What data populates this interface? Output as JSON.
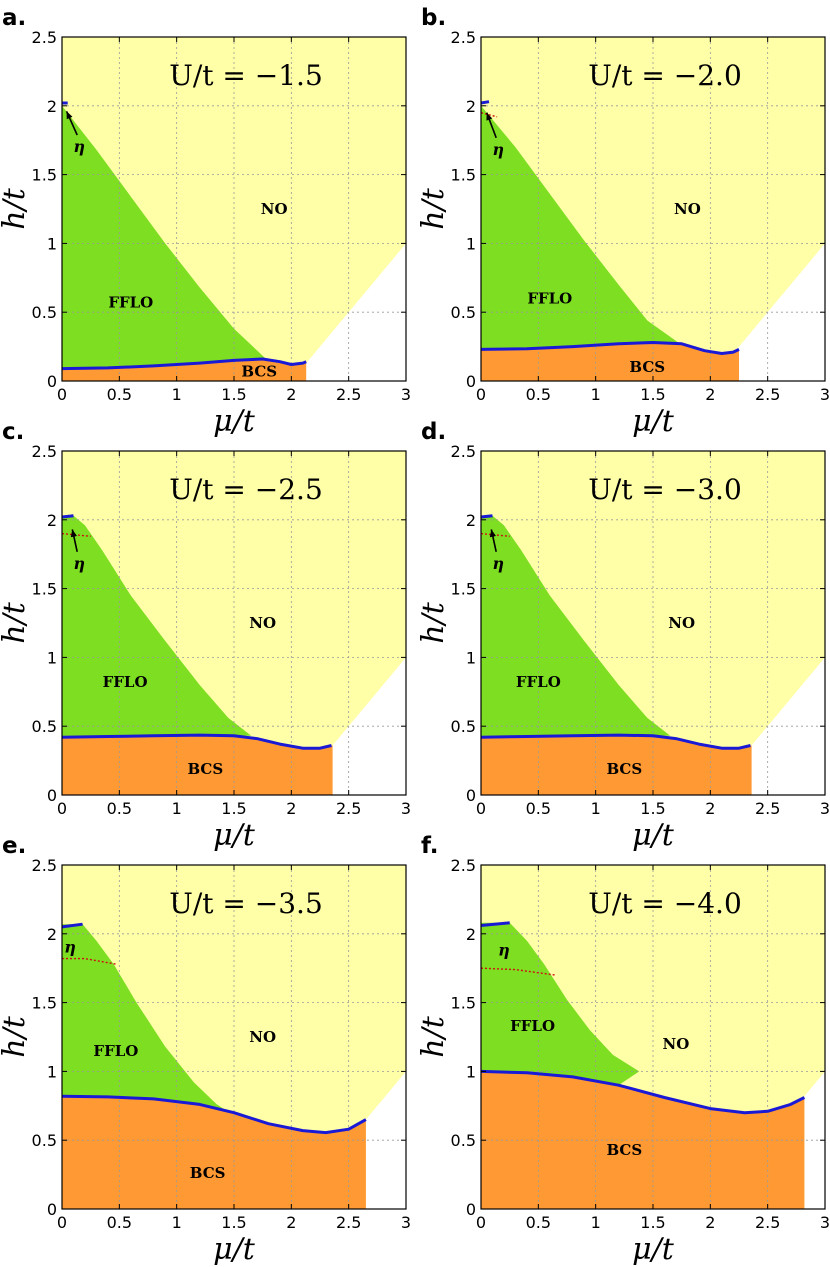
{
  "chart_data": [
    {
      "type": "area",
      "panel": "a.",
      "title": "U/t = −1.5",
      "xlabel": "μ/t",
      "ylabel": "h/t",
      "xlim": [
        0,
        3
      ],
      "ylim": [
        0,
        2.5
      ],
      "xticks": [
        "0",
        "0.5",
        "1",
        "1.5",
        "2",
        "2.5",
        "3"
      ],
      "yticks": [
        "0",
        "0.5",
        "1",
        "1.5",
        "2",
        "2.5"
      ],
      "grid": true,
      "regions": [
        {
          "name": "NO",
          "color": "#ffffa8",
          "label_at": [
            1.85,
            1.25
          ]
        },
        {
          "name": "FFLO",
          "color": "#7ede22",
          "label_at": [
            0.6,
            0.57
          ]
        },
        {
          "name": "BCS",
          "color": "#ff9933",
          "label_at": [
            1.72,
            0.07
          ]
        }
      ],
      "no_upper_boundary": [
        [
          2.0,
          0.0
        ],
        [
          3.0,
          1.0
        ]
      ],
      "fflo_upper_boundary": [
        [
          0,
          2.0
        ],
        [
          0.3,
          1.68
        ],
        [
          0.6,
          1.34
        ],
        [
          0.9,
          1.0
        ],
        [
          1.2,
          0.68
        ],
        [
          1.5,
          0.38
        ],
        [
          1.78,
          0.16
        ]
      ],
      "bcs_boundary": [
        [
          0,
          0.09
        ],
        [
          0.4,
          0.095
        ],
        [
          0.8,
          0.11
        ],
        [
          1.2,
          0.13
        ],
        [
          1.5,
          0.15
        ],
        [
          1.75,
          0.16
        ],
        [
          1.9,
          0.14
        ],
        [
          2.0,
          0.12
        ],
        [
          2.1,
          0.13
        ],
        [
          2.13,
          0.14
        ]
      ],
      "bcs_right_edge": 2.13,
      "eta_line": [
        [
          0,
          2.02
        ],
        [
          0.05,
          2.02
        ]
      ],
      "eta_dashed": [],
      "eta_label": {
        "text": "η",
        "at": [
          0.15,
          1.7
        ],
        "arrow_to": [
          0.04,
          1.96
        ]
      }
    },
    {
      "type": "area",
      "panel": "b.",
      "title": "U/t = −2.0",
      "xlabel": "μ/t",
      "ylabel": "h/t",
      "xlim": [
        0,
        3
      ],
      "ylim": [
        0,
        2.5
      ],
      "xticks": [
        "0",
        "0.5",
        "1",
        "1.5",
        "2",
        "2.5",
        "3"
      ],
      "yticks": [
        "0",
        "0.5",
        "1",
        "1.5",
        "2",
        "2.5"
      ],
      "grid": true,
      "regions": [
        {
          "name": "NO",
          "color": "#ffffa8",
          "label_at": [
            1.8,
            1.25
          ]
        },
        {
          "name": "FFLO",
          "color": "#7ede22",
          "label_at": [
            0.6,
            0.6
          ]
        },
        {
          "name": "BCS",
          "color": "#ff9933",
          "label_at": [
            1.45,
            0.1
          ]
        }
      ],
      "no_upper_boundary": [
        [
          2.22,
          0.22
        ],
        [
          3.0,
          1.0
        ]
      ],
      "fflo_upper_boundary": [
        [
          0,
          2.0
        ],
        [
          0.3,
          1.7
        ],
        [
          0.6,
          1.36
        ],
        [
          0.9,
          1.02
        ],
        [
          1.2,
          0.7
        ],
        [
          1.45,
          0.44
        ],
        [
          1.72,
          0.28
        ]
      ],
      "bcs_boundary": [
        [
          0,
          0.23
        ],
        [
          0.4,
          0.235
        ],
        [
          0.8,
          0.25
        ],
        [
          1.2,
          0.27
        ],
        [
          1.5,
          0.28
        ],
        [
          1.75,
          0.27
        ],
        [
          1.95,
          0.22
        ],
        [
          2.1,
          0.2
        ],
        [
          2.2,
          0.21
        ],
        [
          2.25,
          0.23
        ]
      ],
      "bcs_right_edge": 2.25,
      "eta_line": [
        [
          0,
          2.02
        ],
        [
          0.07,
          2.03
        ]
      ],
      "eta_dashed": [
        [
          0.0,
          1.95
        ],
        [
          0.14,
          1.92
        ]
      ],
      "eta_label": {
        "text": "η",
        "at": [
          0.15,
          1.68
        ],
        "arrow_to": [
          0.05,
          1.95
        ]
      }
    },
    {
      "type": "area",
      "panel": "c.",
      "title": "U/t = −2.5",
      "xlabel": "μ/t",
      "ylabel": "h/t",
      "xlim": [
        0,
        3
      ],
      "ylim": [
        0,
        2.5
      ],
      "xticks": [
        "0",
        "0.5",
        "1",
        "1.5",
        "2",
        "2.5",
        "3"
      ],
      "yticks": [
        "0",
        "0.5",
        "1",
        "1.5",
        "2",
        "2.5"
      ],
      "grid": true,
      "regions": [
        {
          "name": "NO",
          "color": "#ffffa8",
          "label_at": [
            1.75,
            1.25
          ]
        },
        {
          "name": "FFLO",
          "color": "#7ede22",
          "label_at": [
            0.55,
            0.82
          ]
        },
        {
          "name": "BCS",
          "color": "#ff9933",
          "label_at": [
            1.25,
            0.19
          ]
        }
      ],
      "no_upper_boundary": [
        [
          2.35,
          0.35
        ],
        [
          3.0,
          1.0
        ]
      ],
      "fflo_upper_boundary": [
        [
          0.1,
          2.03
        ],
        [
          0.2,
          1.96
        ],
        [
          0.35,
          1.78
        ],
        [
          0.6,
          1.45
        ],
        [
          0.9,
          1.12
        ],
        [
          1.2,
          0.8
        ],
        [
          1.45,
          0.56
        ],
        [
          1.65,
          0.43
        ]
      ],
      "bcs_boundary": [
        [
          0,
          0.42
        ],
        [
          0.4,
          0.425
        ],
        [
          0.8,
          0.43
        ],
        [
          1.2,
          0.435
        ],
        [
          1.5,
          0.43
        ],
        [
          1.7,
          0.41
        ],
        [
          1.9,
          0.37
        ],
        [
          2.1,
          0.34
        ],
        [
          2.25,
          0.34
        ],
        [
          2.35,
          0.36
        ]
      ],
      "bcs_right_edge": 2.36,
      "eta_line": [
        [
          0,
          2.02
        ],
        [
          0.1,
          2.03
        ]
      ],
      "eta_dashed": [
        [
          0.0,
          1.9
        ],
        [
          0.25,
          1.88
        ]
      ],
      "eta_label": {
        "text": "η",
        "at": [
          0.15,
          1.68
        ],
        "arrow_to": [
          0.09,
          1.93
        ]
      }
    },
    {
      "type": "area",
      "panel": "d.",
      "title": "U/t = −3.0",
      "xlabel": "μ/t",
      "ylabel": "h/t",
      "xlim": [
        0,
        3
      ],
      "ylim": [
        0,
        2.5
      ],
      "xticks": [
        "0",
        "0.5",
        "1",
        "1.5",
        "2",
        "2.5",
        "3"
      ],
      "yticks": [
        "0",
        "0.5",
        "1",
        "1.5",
        "2",
        "2.5"
      ],
      "grid": true,
      "regions": [
        {
          "name": "NO",
          "color": "#ffffa8",
          "label_at": [
            1.75,
            1.25
          ]
        },
        {
          "name": "FFLO",
          "color": "#7ede22",
          "label_at": [
            0.5,
            0.82
          ]
        },
        {
          "name": "BCS",
          "color": "#ff9933",
          "label_at": [
            1.25,
            0.19
          ]
        }
      ],
      "no_upper_boundary": [
        [
          2.35,
          0.35
        ],
        [
          3.0,
          1.0
        ]
      ],
      "fflo_upper_boundary": [
        [
          0.1,
          2.03
        ],
        [
          0.2,
          1.96
        ],
        [
          0.35,
          1.78
        ],
        [
          0.6,
          1.45
        ],
        [
          0.9,
          1.12
        ],
        [
          1.2,
          0.8
        ],
        [
          1.45,
          0.56
        ],
        [
          1.65,
          0.43
        ]
      ],
      "bcs_boundary": [
        [
          0,
          0.42
        ],
        [
          0.4,
          0.425
        ],
        [
          0.8,
          0.43
        ],
        [
          1.2,
          0.435
        ],
        [
          1.5,
          0.43
        ],
        [
          1.7,
          0.41
        ],
        [
          1.9,
          0.37
        ],
        [
          2.1,
          0.34
        ],
        [
          2.25,
          0.34
        ],
        [
          2.35,
          0.36
        ]
      ],
      "bcs_right_edge": 2.36,
      "eta_line": [
        [
          0,
          2.02
        ],
        [
          0.1,
          2.03
        ]
      ],
      "eta_dashed": [
        [
          0.0,
          1.9
        ],
        [
          0.25,
          1.88
        ]
      ],
      "eta_label": {
        "text": "η",
        "at": [
          0.15,
          1.68
        ],
        "arrow_to": [
          0.09,
          1.93
        ]
      }
    },
    {
      "type": "area",
      "panel": "e.",
      "title": "U/t = −3.5",
      "xlabel": "μ/t",
      "ylabel": "h/t",
      "xlim": [
        0,
        3
      ],
      "ylim": [
        0,
        2.5
      ],
      "xticks": [
        "0",
        "0.5",
        "1",
        "1.5",
        "2",
        "2.5",
        "3"
      ],
      "yticks": [
        "0",
        "0.5",
        "1",
        "1.5",
        "2",
        "2.5"
      ],
      "grid": true,
      "regions": [
        {
          "name": "NO",
          "color": "#ffffa8",
          "label_at": [
            1.75,
            1.25
          ]
        },
        {
          "name": "FFLO",
          "color": "#7ede22",
          "label_at": [
            0.47,
            1.15
          ]
        },
        {
          "name": "BCS",
          "color": "#ff9933",
          "label_at": [
            1.27,
            0.26
          ]
        }
      ],
      "no_upper_boundary": [
        [
          2.65,
          0.65
        ],
        [
          3.0,
          1.0
        ]
      ],
      "fflo_upper_boundary": [
        [
          0.18,
          2.07
        ],
        [
          0.3,
          1.95
        ],
        [
          0.45,
          1.78
        ],
        [
          0.65,
          1.5
        ],
        [
          0.9,
          1.18
        ],
        [
          1.15,
          0.92
        ],
        [
          1.35,
          0.76
        ],
        [
          1.5,
          0.68
        ]
      ],
      "bcs_boundary": [
        [
          0,
          0.82
        ],
        [
          0.4,
          0.815
        ],
        [
          0.8,
          0.8
        ],
        [
          1.2,
          0.76
        ],
        [
          1.5,
          0.7
        ],
        [
          1.8,
          0.62
        ],
        [
          2.1,
          0.57
        ],
        [
          2.3,
          0.555
        ],
        [
          2.5,
          0.58
        ],
        [
          2.65,
          0.65
        ]
      ],
      "bcs_right_edge": 2.65,
      "eta_line": [
        [
          0,
          2.05
        ],
        [
          0.18,
          2.07
        ]
      ],
      "eta_dashed": [
        [
          0.0,
          1.82
        ],
        [
          0.2,
          1.82
        ],
        [
          0.47,
          1.78
        ]
      ],
      "eta_label": {
        "text": "η",
        "at": [
          0.07,
          1.9
        ],
        "arrow_to": null
      }
    },
    {
      "type": "area",
      "panel": "f.",
      "title": "U/t = −4.0",
      "xlabel": "μ/t",
      "ylabel": "h/t",
      "xlim": [
        0,
        3
      ],
      "ylim": [
        0,
        2.5
      ],
      "xticks": [
        "0",
        "0.5",
        "1",
        "1.5",
        "2",
        "2.5",
        "3"
      ],
      "yticks": [
        "0",
        "0.5",
        "1",
        "1.5",
        "2",
        "2.5"
      ],
      "grid": true,
      "regions": [
        {
          "name": "NO",
          "color": "#ffffa8",
          "label_at": [
            1.7,
            1.2
          ]
        },
        {
          "name": "FFLO",
          "color": "#7ede22",
          "label_at": [
            0.45,
            1.33
          ]
        },
        {
          "name": "BCS",
          "color": "#ff9933",
          "label_at": [
            1.25,
            0.43
          ]
        }
      ],
      "no_upper_boundary": [
        [
          2.82,
          0.82
        ],
        [
          3.0,
          1.0
        ]
      ],
      "fflo_upper_boundary": [
        [
          0.25,
          2.08
        ],
        [
          0.4,
          1.95
        ],
        [
          0.55,
          1.78
        ],
        [
          0.75,
          1.52
        ],
        [
          0.95,
          1.3
        ],
        [
          1.15,
          1.12
        ],
        [
          1.38,
          1.0
        ]
      ],
      "bcs_boundary": [
        [
          0,
          1.0
        ],
        [
          0.4,
          0.99
        ],
        [
          0.8,
          0.96
        ],
        [
          1.2,
          0.9
        ],
        [
          1.6,
          0.81
        ],
        [
          2.0,
          0.73
        ],
        [
          2.3,
          0.7
        ],
        [
          2.5,
          0.71
        ],
        [
          2.7,
          0.76
        ],
        [
          2.82,
          0.81
        ]
      ],
      "bcs_right_edge": 2.82,
      "eta_line": [
        [
          0,
          2.06
        ],
        [
          0.25,
          2.08
        ]
      ],
      "eta_dashed": [
        [
          0.0,
          1.75
        ],
        [
          0.3,
          1.74
        ],
        [
          0.65,
          1.7
        ]
      ],
      "eta_label": {
        "text": "η",
        "at": [
          0.2,
          1.88
        ],
        "arrow_to": null
      }
    }
  ]
}
